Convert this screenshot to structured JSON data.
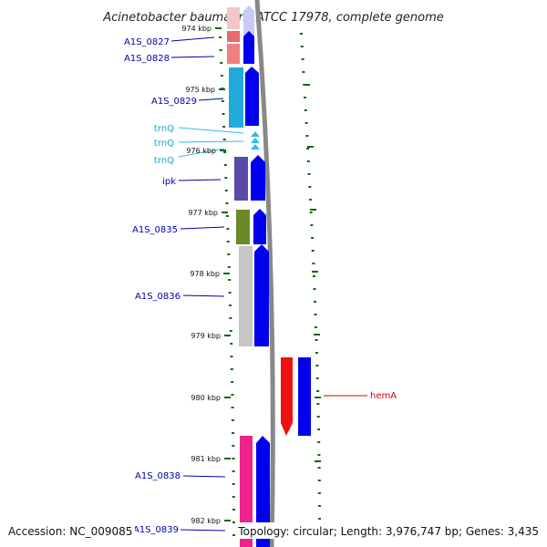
{
  "title": "Acinetobacter baumannii ATCC 17978, complete genome",
  "footer": {
    "accession": "Accession: NC_009085",
    "topology": "Topology: circular; Length: 3,976,747 bp; Genes: 3,435"
  },
  "colors": {
    "cds": "#0000ee",
    "trna": "#33bbee",
    "label_dark": "#0000aa",
    "label_trna": "#11aacc",
    "label_red": "#dd0000",
    "tick": "#116611"
  },
  "ruler": [
    "974 kbp",
    "975 kbp",
    "976 kbp",
    "977 kbp",
    "978 kbp",
    "979 kbp",
    "980 kbp",
    "981 kbp",
    "982 kbp"
  ],
  "genes": [
    {
      "label": "A1S_0827",
      "strand": "+"
    },
    {
      "label": "A1S_0828",
      "strand": "+"
    },
    {
      "label": "A1S_0829",
      "strand": "+"
    },
    {
      "label": "trnQ",
      "strand": "+"
    },
    {
      "label": "trnQ",
      "strand": "+"
    },
    {
      "label": "trnQ",
      "strand": "+"
    },
    {
      "label": "ipk",
      "strand": "+"
    },
    {
      "label": "A1S_0835",
      "strand": "+"
    },
    {
      "label": "A1S_0836",
      "strand": "+"
    },
    {
      "label": "hemA",
      "strand": "-"
    },
    {
      "label": "A1S_0838",
      "strand": "+"
    },
    {
      "label": "A1S_0839",
      "strand": "+"
    }
  ]
}
